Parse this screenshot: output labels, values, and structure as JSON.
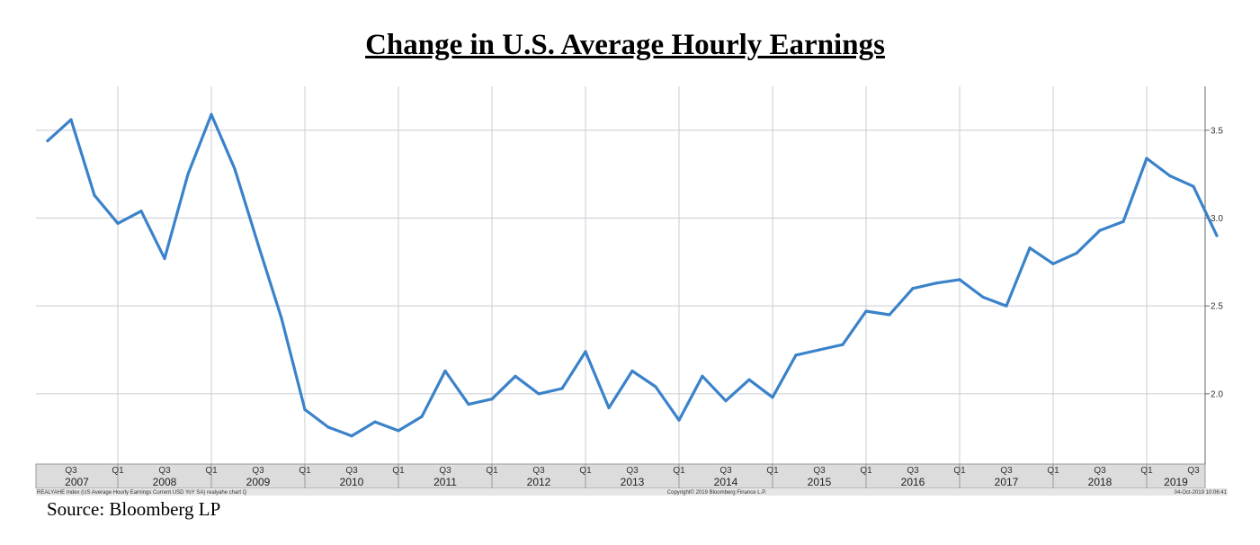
{
  "title": "Change in U.S. Average Hourly Earnings",
  "source": "Source: Bloomberg LP",
  "footer": {
    "left": "REALYAHE Index (US Average Hourly Earnings Current USD YoY SA) realyahe chart  Q",
    "center": "Copyright© 2019 Bloomberg Finance L.P.",
    "right": "04-Oct-2019 10:06:41"
  },
  "colors": {
    "line": "#3a82c9",
    "grid": "#c8ccd2",
    "axis_band": "#dcdcdc"
  },
  "chart_data": {
    "type": "line",
    "title": "Change in U.S. Average Hourly Earnings",
    "xlabel": "",
    "ylabel": "",
    "ylim": [
      1.6,
      3.75
    ],
    "yticks": [
      2.0,
      2.5,
      3.0,
      3.5
    ],
    "ytick_labels": [
      "2.0",
      "2.5",
      "3.0",
      "3.5"
    ],
    "y_axis_position": "right",
    "grid": true,
    "x_start": "2007 Q2",
    "x_end": "2019 Q3",
    "year_labels": [
      "2007",
      "2008",
      "2009",
      "2010",
      "2011",
      "2012",
      "2013",
      "2014",
      "2015",
      "2016",
      "2017",
      "2018",
      "2019"
    ],
    "quarter_labels": [
      "Q1",
      "Q3"
    ],
    "series": [
      {
        "values": [
          [
            "2007 Q2",
            3.44
          ],
          [
            "2007 Q3",
            3.56
          ],
          [
            "2007 Q4",
            3.13
          ],
          [
            "2008 Q1",
            2.97
          ],
          [
            "2008 Q2",
            3.04
          ],
          [
            "2008 Q3",
            2.77
          ],
          [
            "2008 Q4",
            3.25
          ],
          [
            "2009 Q1",
            3.59
          ],
          [
            "2009 Q2",
            3.28
          ],
          [
            "2009 Q3",
            2.85
          ],
          [
            "2009 Q4",
            2.43
          ],
          [
            "2010 Q1",
            1.91
          ],
          [
            "2010 Q2",
            1.81
          ],
          [
            "2010 Q3",
            1.76
          ],
          [
            "2010 Q4",
            1.84
          ],
          [
            "2011 Q1",
            1.79
          ],
          [
            "2011 Q2",
            1.87
          ],
          [
            "2011 Q3",
            2.13
          ],
          [
            "2011 Q4",
            1.94
          ],
          [
            "2012 Q1",
            1.97
          ],
          [
            "2012 Q2",
            2.1
          ],
          [
            "2012 Q3",
            2.0
          ],
          [
            "2012 Q4",
            2.03
          ],
          [
            "2013 Q1",
            2.24
          ],
          [
            "2013 Q2",
            1.92
          ],
          [
            "2013 Q3",
            2.13
          ],
          [
            "2013 Q4",
            2.04
          ],
          [
            "2014 Q1",
            1.85
          ],
          [
            "2014 Q2",
            2.1
          ],
          [
            "2014 Q3",
            1.96
          ],
          [
            "2014 Q4",
            2.08
          ],
          [
            "2015 Q1",
            1.98
          ],
          [
            "2015 Q2",
            2.22
          ],
          [
            "2015 Q3",
            2.25
          ],
          [
            "2015 Q4",
            2.28
          ],
          [
            "2016 Q1",
            2.47
          ],
          [
            "2016 Q2",
            2.45
          ],
          [
            "2016 Q3",
            2.6
          ],
          [
            "2016 Q4",
            2.63
          ],
          [
            "2017 Q1",
            2.65
          ],
          [
            "2017 Q2",
            2.55
          ],
          [
            "2017 Q3",
            2.5
          ],
          [
            "2017 Q4",
            2.83
          ],
          [
            "2018 Q1",
            2.74
          ],
          [
            "2018 Q2",
            2.8
          ],
          [
            "2018 Q3",
            2.93
          ],
          [
            "2018 Q4",
            2.98
          ],
          [
            "2019 Q1",
            3.34
          ],
          [
            "2019 Q2",
            3.24
          ],
          [
            "2019 Q3",
            3.18
          ],
          [
            "2019 Q4",
            2.9
          ]
        ]
      }
    ]
  }
}
